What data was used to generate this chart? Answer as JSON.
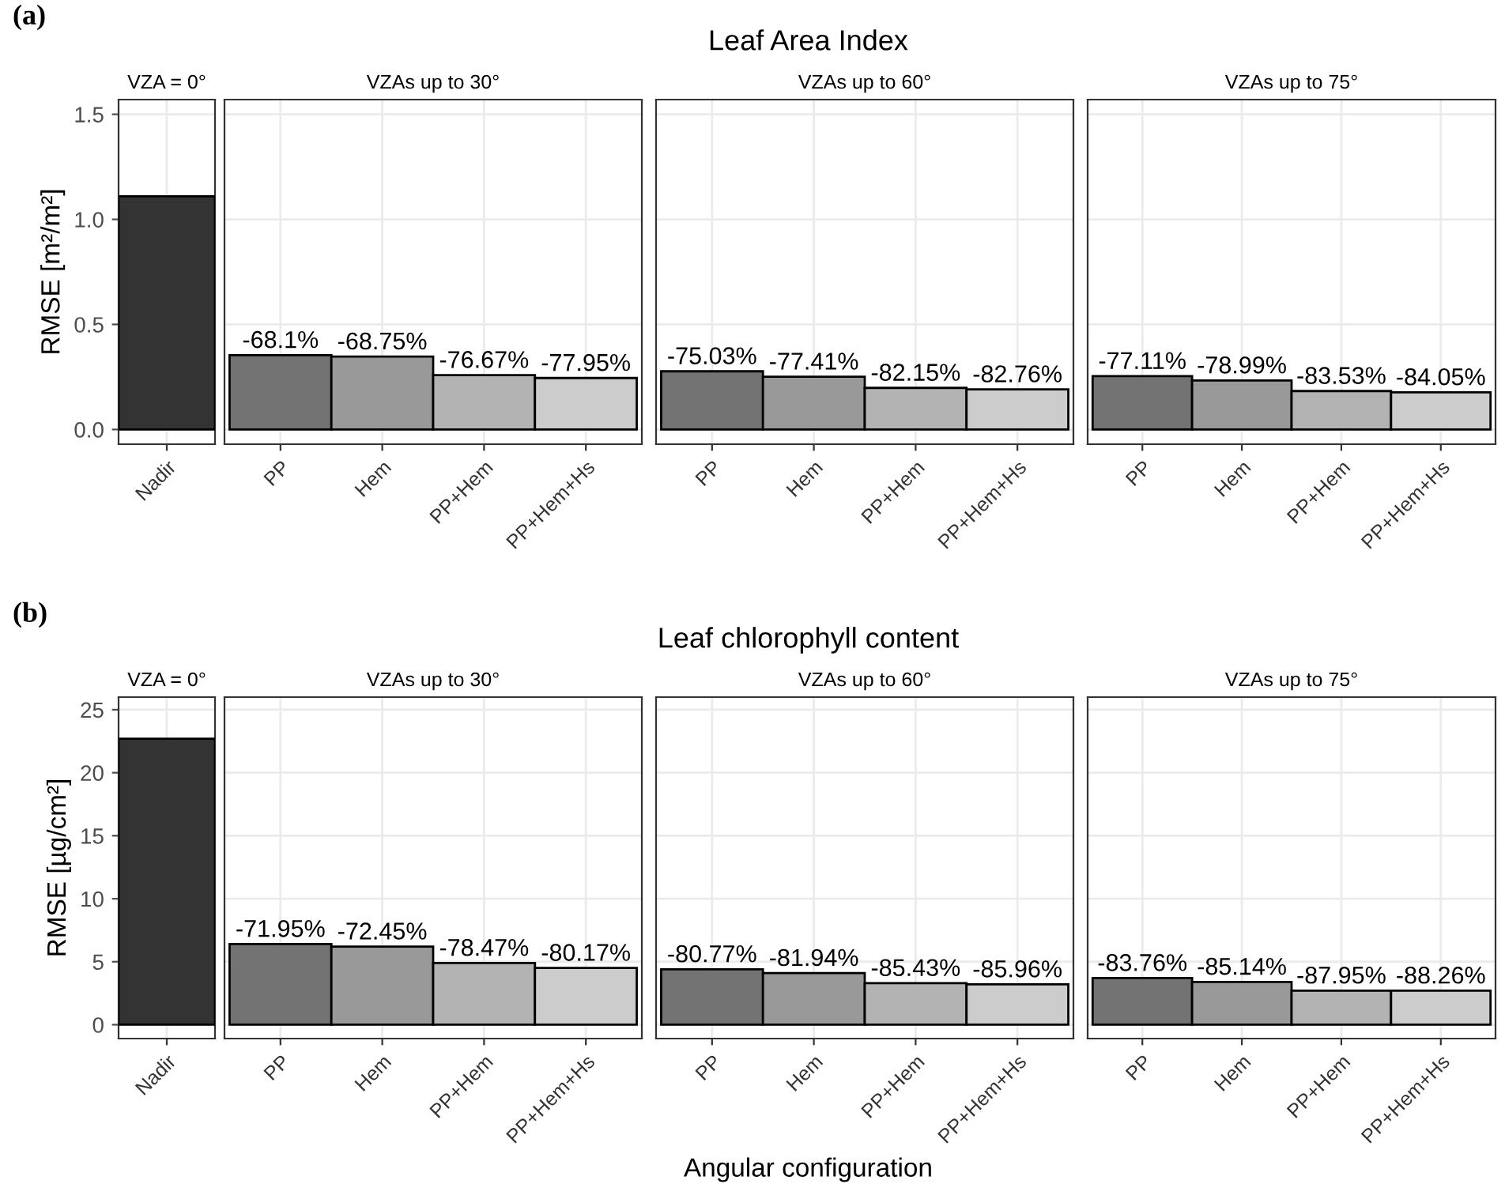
{
  "chart_data": [
    {
      "type": "bar",
      "title": "VZA = 0°",
      "ylabel": "RMSE [m²/m²]",
      "annotations": [
        "(a)",
        "Leaf Area Index"
      ],
      "categories": [
        "Nadir"
      ],
      "values": [
        1.11
      ],
      "colors": [
        "#333333"
      ],
      "ylim": [
        -0.07,
        1.57
      ],
      "yticks": [
        {
          "value": 0,
          "label": "0.0"
        },
        0.5,
        {
          "value": 1,
          "label": "1.0"
        },
        1.5
      ],
      "grid": true
    },
    {
      "type": "bar",
      "title": "VZAs up to 30°",
      "categories": [
        "PP",
        "Hem",
        "PP+Hem",
        "PP+Hem+Hs"
      ],
      "values": [
        0.354,
        0.347,
        0.259,
        0.245
      ],
      "colors": [
        "#737373",
        "#999999",
        "#b3b3b3",
        "#cccccc"
      ],
      "annotations": [
        {
          "text": "-68.1%",
          "x": "PP",
          "y": 0.354
        },
        {
          "text": "-68.75%",
          "x": "Hem",
          "y": 0.347
        },
        {
          "text": "-76.67%",
          "x": "PP+Hem",
          "y": 0.259
        },
        {
          "text": "-77.95%",
          "x": "PP+Hem+Hs",
          "y": 0.245
        }
      ],
      "ylim": [
        -0.07,
        1.57
      ],
      "yticks": [
        0,
        0.5,
        1,
        1.5
      ],
      "grid": true,
      "tick_labels": "x"
    },
    {
      "type": "bar",
      "title": "VZAs up to 60°",
      "categories": [
        "PP",
        "Hem",
        "PP+Hem",
        "PP+Hem+Hs"
      ],
      "values": [
        0.277,
        0.251,
        0.198,
        0.191
      ],
      "colors": [
        "#737373",
        "#999999",
        "#b3b3b3",
        "#cccccc"
      ],
      "annotations": [
        {
          "text": "-75.03%",
          "x": "PP",
          "y": 0.277
        },
        {
          "text": "-77.41%",
          "x": "Hem",
          "y": 0.251
        },
        {
          "text": "-82.15%",
          "x": "PP+Hem",
          "y": 0.198
        },
        {
          "text": "-82.76%",
          "x": "PP+Hem+Hs",
          "y": 0.191
        }
      ],
      "ylim": [
        -0.07,
        1.57
      ],
      "yticks": [
        0,
        0.5,
        1,
        1.5
      ],
      "grid": true,
      "tick_labels": "x"
    },
    {
      "type": "bar",
      "title": "VZAs up to 75°",
      "categories": [
        "PP",
        "Hem",
        "PP+Hem",
        "PP+Hem+Hs"
      ],
      "values": [
        0.254,
        0.233,
        0.183,
        0.177
      ],
      "colors": [
        "#737373",
        "#999999",
        "#b3b3b3",
        "#cccccc"
      ],
      "annotations": [
        {
          "text": "-77.11%",
          "x": "PP",
          "y": 0.254
        },
        {
          "text": "-78.99%",
          "x": "Hem",
          "y": 0.233
        },
        {
          "text": "-83.53%",
          "x": "PP+Hem",
          "y": 0.183
        },
        {
          "text": "-84.05%",
          "x": "PP+Hem+Hs",
          "y": 0.177
        }
      ],
      "ylim": [
        -0.07,
        1.57
      ],
      "yticks": [
        0,
        0.5,
        1,
        1.5
      ],
      "grid": true,
      "tick_labels": "x"
    },
    {
      "type": "bar",
      "title": "VZA = 0°",
      "ylabel": "RMSE [µg/cm²]",
      "annotations": [
        "(b)",
        "Leaf chlorophyll content"
      ],
      "categories": [
        "Nadir"
      ],
      "values": [
        22.7
      ],
      "colors": [
        "#333333"
      ],
      "ylim": [
        -1.1,
        26
      ],
      "yticks": [
        0,
        5,
        10,
        15,
        20,
        25
      ],
      "grid": true
    },
    {
      "type": "bar",
      "title": "VZAs up to 30°",
      "categories": [
        "PP",
        "Hem",
        "PP+Hem",
        "PP+Hem+Hs"
      ],
      "values": [
        6.4,
        6.2,
        4.9,
        4.5
      ],
      "colors": [
        "#737373",
        "#999999",
        "#b3b3b3",
        "#cccccc"
      ],
      "annotations": [
        {
          "text": "-71.95%",
          "x": "PP",
          "y": 6.4
        },
        {
          "text": "-72.45%",
          "x": "Hem",
          "y": 6.2
        },
        {
          "text": "-78.47%",
          "x": "PP+Hem",
          "y": 4.9
        },
        {
          "text": "-80.17%",
          "x": "PP+Hem+Hs",
          "y": 4.5
        }
      ],
      "ylim": [
        -1.1,
        26
      ],
      "yticks": [
        0,
        5,
        10,
        15,
        20,
        25
      ],
      "grid": true,
      "tick_labels": "x"
    },
    {
      "type": "bar",
      "title": "VZAs up to 60°",
      "categories": [
        "PP",
        "Hem",
        "PP+Hem",
        "PP+Hem+Hs"
      ],
      "values": [
        4.4,
        4.1,
        3.3,
        3.2
      ],
      "colors": [
        "#737373",
        "#999999",
        "#b3b3b3",
        "#cccccc"
      ],
      "annotations": [
        {
          "text": "-80.77%",
          "x": "PP",
          "y": 4.4
        },
        {
          "text": "-81.94%",
          "x": "Hem",
          "y": 4.1
        },
        {
          "text": "-85.43%",
          "x": "PP+Hem",
          "y": 3.3
        },
        {
          "text": "-85.96%",
          "x": "PP+Hem+Hs",
          "y": 3.2
        }
      ],
      "ylim": [
        -1.1,
        26
      ],
      "yticks": [
        0,
        5,
        10,
        15,
        20,
        25
      ],
      "grid": true,
      "tick_labels": "x"
    },
    {
      "type": "bar",
      "title": "VZAs up to 75°",
      "xlabel": "Angular configuration",
      "categories": [
        "PP",
        "Hem",
        "PP+Hem",
        "PP+Hem+Hs"
      ],
      "values": [
        3.7,
        3.4,
        2.7,
        2.7
      ],
      "colors": [
        "#737373",
        "#999999",
        "#b3b3b3",
        "#cccccc"
      ],
      "annotations": [
        {
          "text": "-83.76%",
          "x": "PP",
          "y": 3.7
        },
        {
          "text": "-85.14%",
          "x": "Hem",
          "y": 3.4
        },
        {
          "text": "-87.95%",
          "x": "PP+Hem",
          "y": 2.7
        },
        {
          "text": "-88.26%",
          "x": "PP+Hem+Hs",
          "y": 2.7
        }
      ],
      "ylim": [
        -1.1,
        26
      ],
      "yticks": [
        0,
        5,
        10,
        15,
        20,
        25
      ],
      "grid": true,
      "tick_labels": "x"
    }
  ]
}
